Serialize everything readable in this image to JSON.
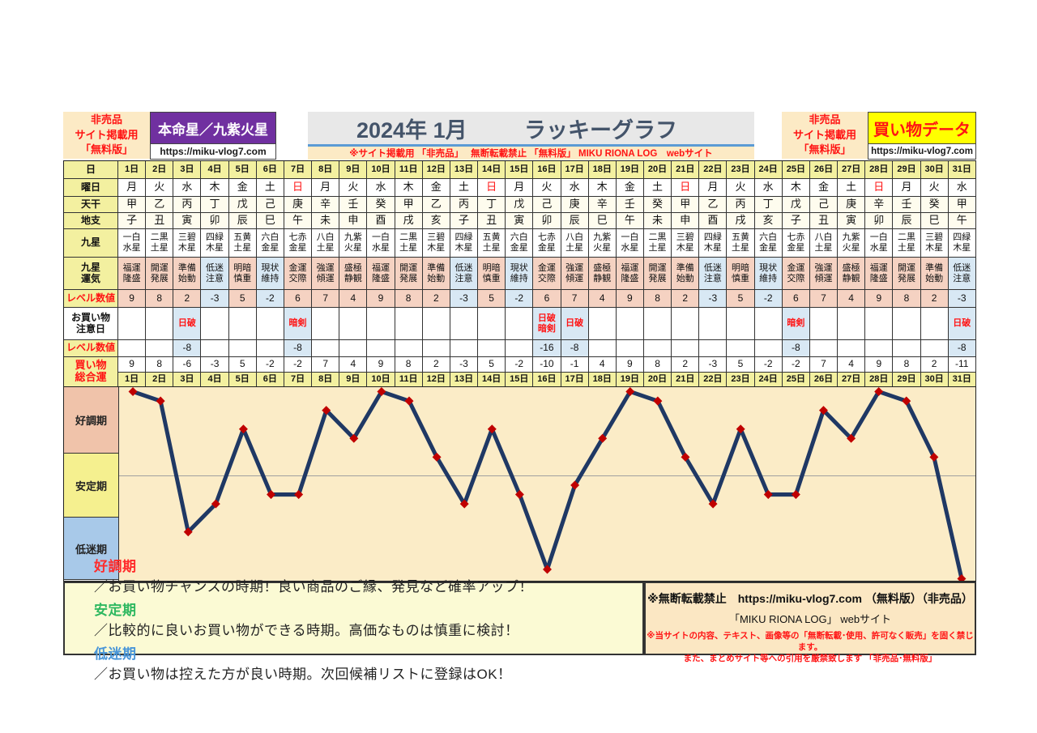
{
  "header": {
    "left_badge": "非売品\nサイト掲載用\n「無料版」",
    "honmei_label": "本命星／九紫火星",
    "honmei_url": "https://miku-vlog7.com",
    "title_date": "2024年 1月",
    "title_main": "ラッキーグラフ",
    "subtitle": "※サイト掲載用 「非売品」　 無断転載禁止 「無料版」 MIKU RIONA LOG　webサイト",
    "right_badge": "非売品\nサイト掲載用\n「無料版」",
    "shopping_label": "買い物データ",
    "shopping_url": "https://miku-vlog7.com"
  },
  "table": {
    "row_labels": {
      "day": "日",
      "weekday": "曜日",
      "stem": "天干",
      "branch": "地支",
      "star": "九星",
      "star_luck": "九星\n運気",
      "level": "レベル数値",
      "caution": "お買い物\n注意日",
      "caution_level": "レベル数値",
      "total": "買い物\n総合運"
    },
    "days": [
      "1日",
      "2日",
      "3日",
      "4日",
      "5日",
      "6日",
      "7日",
      "8日",
      "9日",
      "10日",
      "11日",
      "12日",
      "13日",
      "14日",
      "15日",
      "16日",
      "17日",
      "18日",
      "19日",
      "20日",
      "21日",
      "22日",
      "23日",
      "24日",
      "25日",
      "26日",
      "27日",
      "28日",
      "29日",
      "30日",
      "31日"
    ],
    "weekdays": [
      "月",
      "火",
      "水",
      "木",
      "金",
      "土",
      "日",
      "月",
      "火",
      "水",
      "木",
      "金",
      "土",
      "日",
      "月",
      "火",
      "水",
      "木",
      "金",
      "土",
      "日",
      "月",
      "火",
      "水",
      "木",
      "金",
      "土",
      "日",
      "月",
      "火",
      "水"
    ],
    "sunday_char": "日",
    "stems": [
      "甲",
      "乙",
      "丙",
      "丁",
      "戊",
      "己",
      "庚",
      "辛",
      "壬",
      "癸",
      "甲",
      "乙",
      "丙",
      "丁",
      "戊",
      "己",
      "庚",
      "辛",
      "壬",
      "癸",
      "甲",
      "乙",
      "丙",
      "丁",
      "戊",
      "己",
      "庚",
      "辛",
      "壬",
      "癸",
      "甲"
    ],
    "branches": [
      "子",
      "丑",
      "寅",
      "卯",
      "辰",
      "巳",
      "午",
      "未",
      "申",
      "酉",
      "戌",
      "亥",
      "子",
      "丑",
      "寅",
      "卯",
      "辰",
      "巳",
      "午",
      "未",
      "申",
      "酉",
      "戌",
      "亥",
      "子",
      "丑",
      "寅",
      "卯",
      "辰",
      "巳",
      "午"
    ],
    "stars": [
      "一白水星",
      "二黒土星",
      "三碧木星",
      "四緑木星",
      "五黄土星",
      "六白金星",
      "七赤金星",
      "八白土星",
      "九紫火星",
      "一白水星",
      "二黒土星",
      "三碧木星",
      "四緑木星",
      "五黄土星",
      "六白金星",
      "七赤金星",
      "八白土星",
      "九紫火星",
      "一白水星",
      "二黒土星",
      "三碧木星",
      "四緑木星",
      "五黄土星",
      "六白金星",
      "七赤金星",
      "八白土星",
      "九紫火星",
      "一白水星",
      "二黒土星",
      "三碧木星",
      "四緑木星"
    ],
    "star_lucks": [
      "福運隆盛",
      "開運発展",
      "準備始動",
      "低迷注意",
      "明暗慎重",
      "現状維持",
      "金運交際",
      "強運傾運",
      "盛極静観",
      "福運隆盛",
      "開運発展",
      "準備始動",
      "低迷注意",
      "明暗慎重",
      "現状維持",
      "金運交際",
      "強運傾運",
      "盛極静観",
      "福運隆盛",
      "開運発展",
      "準備始動",
      "低迷注意",
      "明暗慎重",
      "現状維持",
      "金運交際",
      "強運傾運",
      "盛極静観",
      "福運隆盛",
      "開運発展",
      "準備始動",
      "低迷注意"
    ],
    "levels": [
      9,
      8,
      2,
      -3,
      5,
      -2,
      6,
      7,
      4,
      9,
      8,
      2,
      -3,
      5,
      -2,
      6,
      7,
      4,
      9,
      8,
      2,
      -3,
      5,
      -2,
      6,
      7,
      4,
      9,
      8,
      2,
      -3
    ],
    "cautions": {
      "3": "日破",
      "7": "暗剣",
      "16": "日破暗剣",
      "17": "日破",
      "25": "暗剣",
      "31": "日破"
    },
    "caution_levels": {
      "3": "-8",
      "7": "-8",
      "16": "-16",
      "17": "-8",
      "25": "-8",
      "31": "-8"
    },
    "totals": [
      9,
      8,
      -6,
      -3,
      5,
      -2,
      -2,
      7,
      4,
      9,
      8,
      2,
      -3,
      5,
      -2,
      -10,
      -1,
      4,
      9,
      8,
      2,
      -3,
      5,
      -2,
      -2,
      7,
      4,
      9,
      8,
      2,
      -11
    ]
  },
  "chart_data": {
    "type": "line",
    "title": "2024年 1月 ラッキーグラフ",
    "categories": [
      "1日",
      "2日",
      "3日",
      "4日",
      "5日",
      "6日",
      "7日",
      "8日",
      "9日",
      "10日",
      "11日",
      "12日",
      "13日",
      "14日",
      "15日",
      "16日",
      "17日",
      "18日",
      "19日",
      "20日",
      "21日",
      "22日",
      "23日",
      "24日",
      "25日",
      "26日",
      "27日",
      "28日",
      "29日",
      "30日",
      "31日"
    ],
    "series": [
      {
        "name": "買い物総合運",
        "values": [
          9,
          8,
          -6,
          -3,
          5,
          -2,
          -2,
          7,
          4,
          9,
          8,
          2,
          -3,
          5,
          -2,
          -10,
          -1,
          4,
          9,
          8,
          2,
          -3,
          5,
          -2,
          -2,
          7,
          4,
          9,
          8,
          2,
          -11
        ]
      }
    ],
    "ylim": [
      -11.6,
      9.6
    ],
    "zero_gridline": true,
    "legend_position": "none",
    "bands": [
      {
        "label": "好調期",
        "from": 2.4,
        "to": 9.6,
        "color": "#F0C3AA"
      },
      {
        "label": "安定期",
        "from": -4.6,
        "to": 2.4,
        "color": "#F5F08F"
      },
      {
        "label": "低迷期",
        "from": -11.6,
        "to": -4.6,
        "color": "#A8C9E9"
      }
    ],
    "line_color": "#1F3864",
    "marker_color": "#C00000",
    "plot_bg": "#FBECC7",
    "gridline_color": "#A0A0A0"
  },
  "legend": {
    "items": [
      {
        "term": "好調期",
        "color": "#FF2B2B",
        "text": "／お買い物チャンスの時期！良い商品のご縁、発見など確率アップ！"
      },
      {
        "term": "安定期",
        "color": "#2EB860",
        "text": "／比較的に良いお買い物ができる時期。高価なものは慎重に検討！"
      },
      {
        "term": "低迷期",
        "color": "#4A96D8",
        "text": "／お買い物は控えた方が良い時期。次回候補リストに登録はOK！"
      }
    ]
  },
  "notice": {
    "line1": "※無断転載禁止　https://miku-vlog7.com （無料版）（非売品）",
    "line2": "「MIKU RIONA LOG」 webサイト",
    "line3": "※当サイトの内容、テキスト、画像等の「無断転載･使用、許可なく販売」を固く禁じます。",
    "line4": "また、まとめサイト等への引用を厳禁致します 「非売品･無料版」"
  },
  "colors": {
    "banner_purple": "#7030A0",
    "banner_yellow": "#FFFF00",
    "accent_red": "#FF1414",
    "title_text": "#44546A",
    "title_underline": "#5B9BD5",
    "cream": "#FCEAC5",
    "cell_yellow": "#F3F0A0",
    "cell_pink": "#F5D2C2",
    "cell_blue": "#D8E8F4",
    "line_navy": "#1F3864",
    "marker_red": "#C00000"
  }
}
